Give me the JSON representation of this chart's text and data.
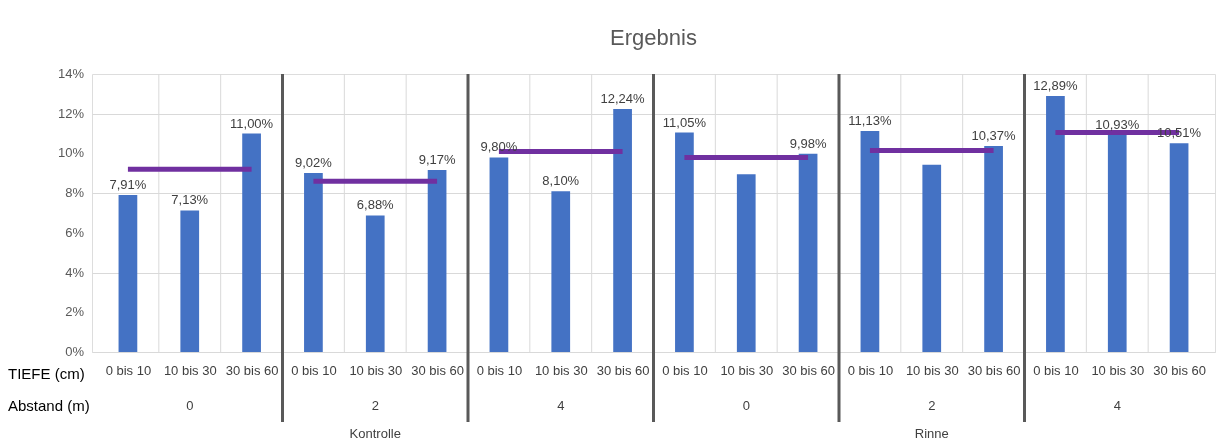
{
  "chart_data": {
    "type": "bar",
    "title": "Ergebnis",
    "categories": [
      "0 bis 10",
      "10 bis 30",
      "30 bis 60",
      "0 bis 10",
      "10 bis 30",
      "30 bis 60",
      "0 bis 10",
      "10 bis 30",
      "30 bis 60",
      "0 bis 10",
      "10 bis 30",
      "30 bis 60",
      "0 bis 10",
      "10 bis 30",
      "30 bis 60",
      "0 bis 10",
      "10 bis 30",
      "30 bis 60"
    ],
    "series": [
      {
        "type": "bar",
        "color": "#4472c4",
        "values": [
          7.91,
          7.13,
          11.0,
          9.02,
          6.88,
          9.17,
          9.8,
          8.1,
          12.24,
          11.05,
          8.95,
          9.98,
          11.13,
          9.43,
          10.37,
          12.89,
          10.93,
          10.51
        ],
        "value_labels": [
          "7,91%",
          "7,13%",
          "11,00%",
          "9,02%",
          "6,88%",
          "9,17%",
          "9,80%",
          "8,10%",
          "12,24%",
          "11,05%",
          null,
          "9,98%",
          "11,13%",
          null,
          "10,37%",
          "12,89%",
          "10,93%",
          "10,51%"
        ]
      },
      {
        "type": "line",
        "color": "#7030a0",
        "values": [
          9.2,
          9.2,
          9.2,
          8.6,
          8.6,
          8.6,
          10.1,
          10.1,
          10.1,
          9.8,
          9.8,
          9.8,
          10.15,
          10.15,
          10.15,
          11.05,
          11.05,
          11.05
        ]
      }
    ],
    "ylim": [
      0,
      14
    ],
    "yticks": [
      {
        "value": 0,
        "label": "0%"
      },
      {
        "value": 2,
        "label": "2%"
      },
      {
        "value": 4,
        "label": "4%"
      },
      {
        "value": 6,
        "label": "6%"
      },
      {
        "value": 8,
        "label": "8%"
      },
      {
        "value": 10,
        "label": "10%"
      },
      {
        "value": 12,
        "label": "12%"
      },
      {
        "value": 14,
        "label": "14%"
      }
    ],
    "grid": true,
    "annotations": [
      "TIEFE (cm)",
      "Abstand (m)",
      "0",
      "2",
      "4",
      "0",
      "2",
      "4",
      "Kontrolle",
      "Rinne"
    ]
  }
}
